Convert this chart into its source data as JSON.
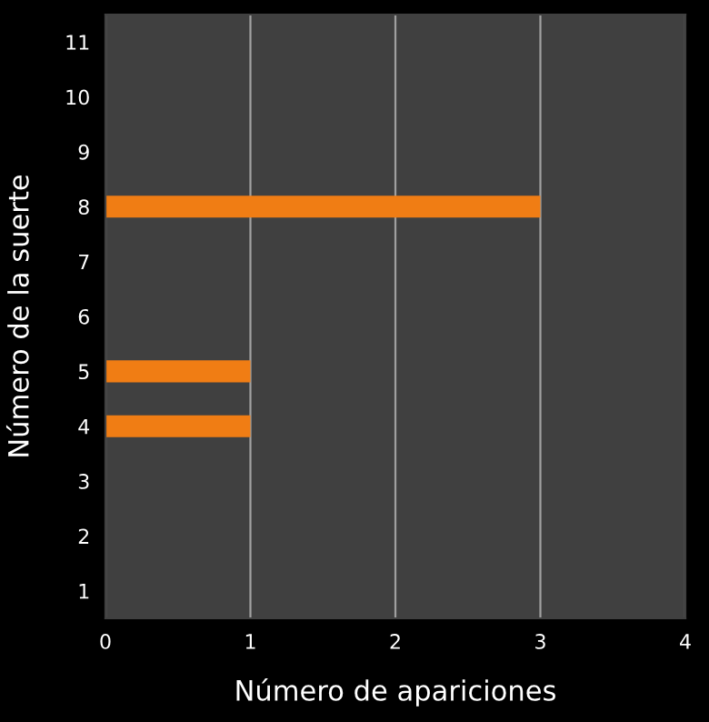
{
  "chart_data": {
    "type": "bar",
    "orientation": "horizontal",
    "xlabel": "Número de apariciones",
    "ylabel": "Número de la suerte",
    "categories": [
      "11",
      "10",
      "9",
      "8",
      "7",
      "6",
      "5",
      "4",
      "3",
      "2",
      "1"
    ],
    "values": [
      0,
      0,
      0,
      3,
      0,
      0,
      1,
      1,
      0,
      0,
      0
    ],
    "color": "#f07d14",
    "xlim": [
      0,
      4
    ],
    "xticks": [
      0,
      1,
      2,
      3,
      4
    ],
    "grid": "x"
  }
}
